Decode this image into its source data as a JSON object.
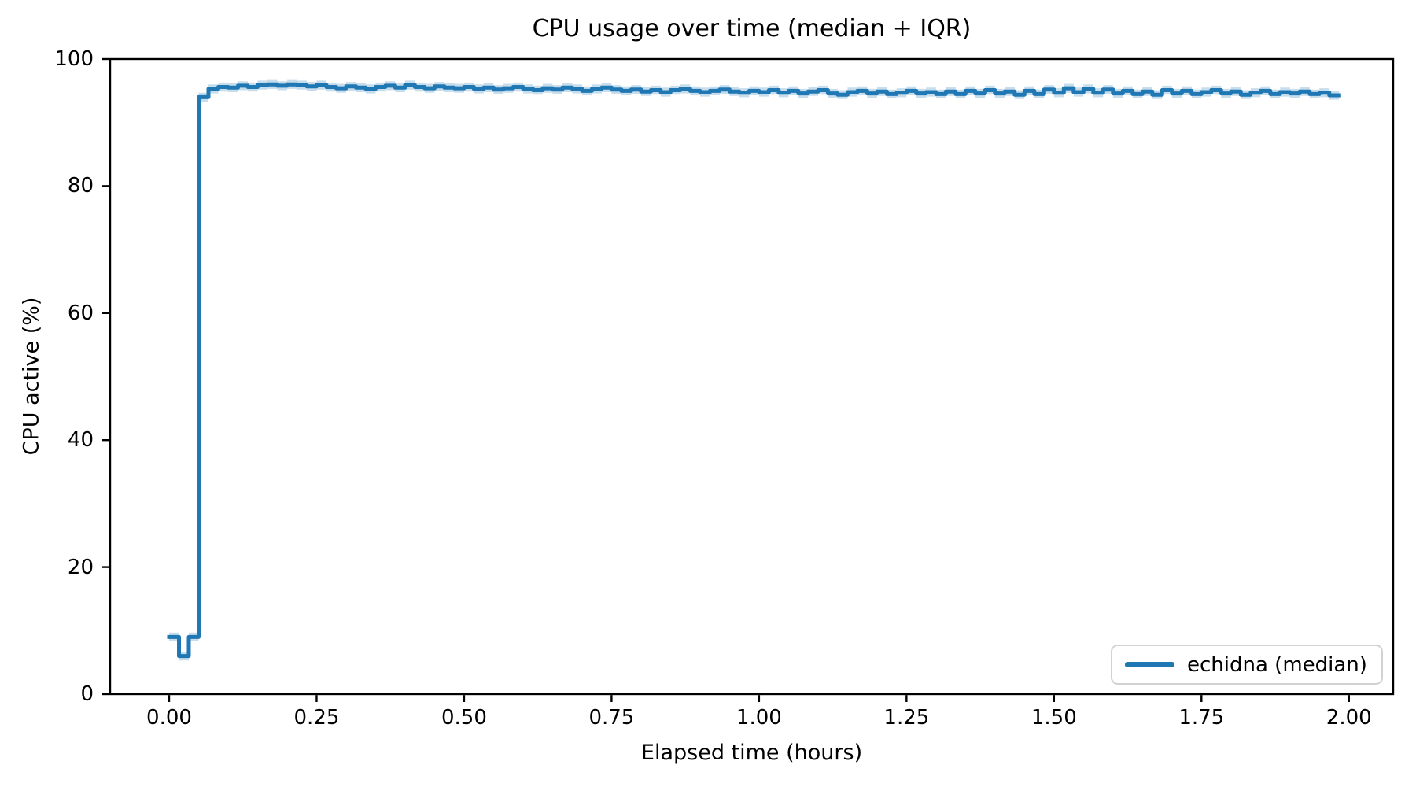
{
  "figure": {
    "background_color": "#ffffff",
    "text_color": "#000000"
  },
  "chart_data": {
    "type": "line",
    "subtype": "step-post",
    "title": "CPU usage over time (median + IQR)",
    "xlabel": "Elapsed time (hours)",
    "ylabel": "CPU active (%)",
    "xlim": [
      -0.1,
      2.075
    ],
    "ylim": [
      0,
      100
    ],
    "xticks": [
      0.0,
      0.25,
      0.5,
      0.75,
      1.0,
      1.25,
      1.5,
      1.75,
      2.0
    ],
    "xtick_labels": [
      "0.00",
      "0.25",
      "0.50",
      "0.75",
      "1.00",
      "1.25",
      "1.50",
      "1.75",
      "2.00"
    ],
    "yticks": [
      0,
      20,
      40,
      60,
      80,
      100
    ],
    "ytick_labels": [
      "0",
      "20",
      "40",
      "60",
      "80",
      "100"
    ],
    "grid": false,
    "legend_position": "lower right",
    "line_color": "#1f77b4",
    "line_width": 5,
    "band_color": "#1f77b4",
    "band_alpha": 0.25,
    "iqr_halfwidth_estimate": 0.7,
    "x_start_hours": 0,
    "x_step_hours": 0.0166667,
    "series": [
      {
        "name": "echidna (median)",
        "values": [
          9,
          6,
          9,
          94,
          95.3,
          95.6,
          95.5,
          95.8,
          95.6,
          95.9,
          96.0,
          95.8,
          96.0,
          95.9,
          95.7,
          95.9,
          95.6,
          95.4,
          95.7,
          95.5,
          95.3,
          95.6,
          95.8,
          95.5,
          95.9,
          95.6,
          95.4,
          95.7,
          95.5,
          95.4,
          95.6,
          95.3,
          95.5,
          95.2,
          95.4,
          95.6,
          95.3,
          95.1,
          95.4,
          95.2,
          95.5,
          95.3,
          95.0,
          95.3,
          95.5,
          95.2,
          95.0,
          95.2,
          94.9,
          95.1,
          94.8,
          95.1,
          95.3,
          95.0,
          94.8,
          95.0,
          95.2,
          94.9,
          94.7,
          95.0,
          94.8,
          95.1,
          94.7,
          95.0,
          94.6,
          94.9,
          95.1,
          94.6,
          94.4,
          94.8,
          95.0,
          94.6,
          94.9,
          94.5,
          94.7,
          95.0,
          94.6,
          94.8,
          94.5,
          94.9,
          94.5,
          95.0,
          94.6,
          95.1,
          94.6,
          94.9,
          94.4,
          95.0,
          94.5,
          95.2,
          94.7,
          95.4,
          94.8,
          95.3,
          94.7,
          95.2,
          94.6,
          95.0,
          94.5,
          94.9,
          94.4,
          95.1,
          94.6,
          95.0,
          94.5,
          94.8,
          95.1,
          94.6,
          94.9,
          94.4,
          94.7,
          95.0,
          94.5,
          94.8,
          94.6,
          94.9,
          94.5,
          94.7,
          94.3
        ]
      }
    ]
  },
  "legend": {
    "entries": [
      {
        "label": "echidna (median)",
        "color": "#1f77b4"
      }
    ]
  }
}
